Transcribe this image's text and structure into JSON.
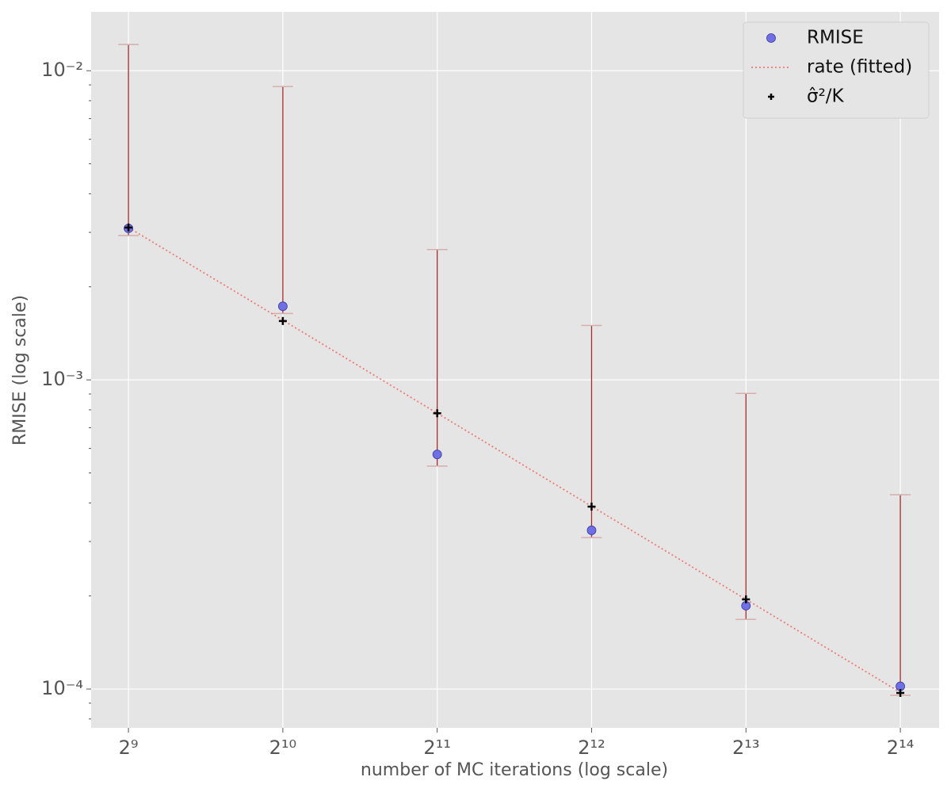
{
  "chart_data": {
    "type": "scatter",
    "xlabel": "number of MC iterations (log scale)",
    "ylabel": "RMISE (log scale)",
    "x": [
      512,
      1024,
      2048,
      4096,
      8192,
      16384
    ],
    "xscale": "log2",
    "yscale": "log10",
    "xlim": [
      433,
      19500
    ],
    "ylim": [
      7.49e-05,
      0.0155
    ],
    "xticks": [
      {
        "value": 512,
        "label": "2⁹"
      },
      {
        "value": 1024,
        "label": "2¹⁰"
      },
      {
        "value": 2048,
        "label": "2¹¹"
      },
      {
        "value": 4096,
        "label": "2¹²"
      },
      {
        "value": 8192,
        "label": "2¹³"
      },
      {
        "value": 16384,
        "label": "2¹⁴"
      }
    ],
    "yticks": [
      {
        "value": 0.01,
        "label": "10⁻²"
      },
      {
        "value": 0.001,
        "label": "10⁻³"
      },
      {
        "value": 0.0001,
        "label": "10⁻⁴"
      }
    ],
    "yminorticks": [
      8e-05,
      9e-05,
      0.0002,
      0.0003,
      0.0004,
      0.0005,
      0.0006,
      0.0007,
      0.0008,
      0.0009,
      0.002,
      0.003,
      0.004,
      0.005,
      0.006,
      0.007,
      0.008,
      0.009
    ],
    "grid": true,
    "legend": "upper right",
    "series": [
      {
        "name": "RMISE",
        "marker": "circle",
        "color": "#7070e6",
        "edgecolor": "#3a3a9a",
        "values": [
          0.00309,
          0.00173,
          0.000574,
          0.000326,
          0.000186,
          0.000102
        ],
        "lower": [
          0.00293,
          0.00164,
          0.000526,
          0.000309,
          0.000168,
          9.54e-05
        ],
        "upper": [
          0.01216,
          0.00889,
          0.00264,
          0.0015,
          0.000904,
          0.000425
        ],
        "errorbar_color": "#a52a2a",
        "cap_color": "#d6aeae"
      },
      {
        "name": "rate (fitted)",
        "marker": "dotted-line",
        "color": "#ee7b73",
        "values": [
          0.00311,
          0.00156,
          0.00078,
          0.00039,
          0.000195,
          9.75e-05
        ]
      },
      {
        "name": "σ̂²/K",
        "marker": "plus",
        "color": "#000000",
        "values": [
          0.00311,
          0.00155,
          0.00078,
          0.000389,
          0.000195,
          9.71e-05
        ]
      }
    ]
  }
}
